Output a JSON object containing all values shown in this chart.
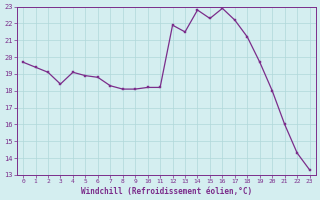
{
  "x": [
    0,
    1,
    2,
    3,
    4,
    5,
    6,
    7,
    8,
    9,
    10,
    11,
    12,
    13,
    14,
    15,
    16,
    17,
    18,
    19,
    20,
    21,
    22,
    23
  ],
  "y": [
    19.7,
    19.4,
    19.1,
    18.4,
    19.1,
    18.9,
    18.8,
    18.3,
    18.1,
    18.1,
    18.2,
    18.2,
    21.9,
    21.5,
    22.8,
    22.3,
    22.9,
    22.2,
    21.2,
    19.7,
    18.0,
    16.0,
    14.3,
    13.3
  ],
  "line_color": "#7b2d8b",
  "marker_color": "#7b2d8b",
  "bg_color": "#d4eef0",
  "grid_color": "#b0d8da",
  "xlabel": "Windchill (Refroidissement éolien,°C)",
  "xlim": [
    -0.5,
    23.5
  ],
  "ylim": [
    13,
    23
  ],
  "yticks": [
    13,
    14,
    15,
    16,
    17,
    18,
    19,
    20,
    21,
    22,
    23
  ],
  "xticks": [
    0,
    1,
    2,
    3,
    4,
    5,
    6,
    7,
    8,
    9,
    10,
    11,
    12,
    13,
    14,
    15,
    16,
    17,
    18,
    19,
    20,
    21,
    22,
    23
  ]
}
